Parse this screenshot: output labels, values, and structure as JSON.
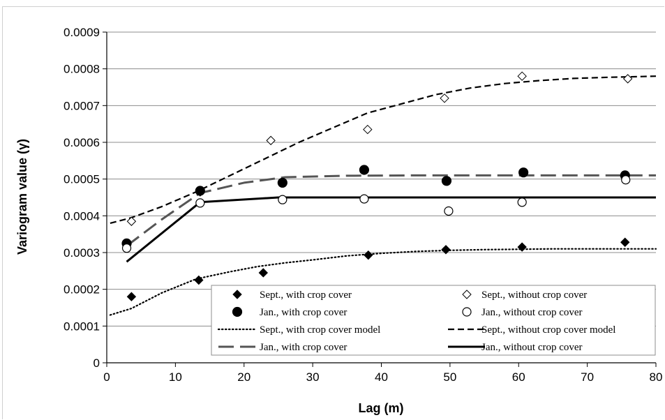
{
  "chart_data": {
    "type": "scatter",
    "title": "",
    "xlabel": "Lag (m)",
    "ylabel": "Variogram value (γ)",
    "xlim": [
      0,
      80
    ],
    "ylim": [
      0,
      0.0009
    ],
    "x_ticks": [
      "0",
      "10",
      "20",
      "30",
      "40",
      "50",
      "60",
      "70",
      "80"
    ],
    "y_ticks": [
      "0",
      "0.0001",
      "0.0002",
      "0.0003",
      "0.0004",
      "0.0005",
      "0.0006",
      "0.0007",
      "0.0008",
      "0.0009"
    ],
    "grid": "horizontal",
    "legend_position": "bottom-right",
    "series": [
      {
        "name": "Sept., with crop cover",
        "kind": "points",
        "marker": "diamond-filled",
        "x": [
          3.6,
          13.4,
          22.8,
          38.1,
          49.4,
          60.5,
          75.5
        ],
        "y": [
          0.00018,
          0.000225,
          0.000245,
          0.000293,
          0.000308,
          0.000315,
          0.000328
        ]
      },
      {
        "name": "Sept., without crop cover",
        "kind": "points",
        "marker": "diamond-open",
        "x": [
          3.6,
          13.6,
          23.9,
          38.0,
          49.2,
          60.5,
          75.9
        ],
        "y": [
          0.000385,
          0.000465,
          0.000605,
          0.000635,
          0.00072,
          0.00078,
          0.000773
        ]
      },
      {
        "name": "Jan., with crop cover",
        "kind": "points",
        "marker": "circle-filled",
        "x": [
          2.9,
          13.6,
          25.6,
          37.5,
          49.5,
          60.7,
          75.5
        ],
        "y": [
          0.000325,
          0.000468,
          0.00049,
          0.000525,
          0.000495,
          0.000518,
          0.00051
        ]
      },
      {
        "name": "Jan., without crop cover",
        "kind": "points",
        "marker": "circle-open",
        "x": [
          2.9,
          13.6,
          25.6,
          37.5,
          49.8,
          60.5,
          75.6
        ],
        "y": [
          0.000312,
          0.000435,
          0.000444,
          0.000446,
          0.000413,
          0.000437,
          0.000498
        ]
      },
      {
        "name": "Sept., with crop cover model",
        "kind": "line",
        "dash": "dotted",
        "x": [
          0.5,
          3.6,
          8,
          13,
          18,
          22,
          26,
          30,
          35,
          40,
          45,
          50,
          55,
          60,
          65,
          70,
          75,
          80
        ],
        "y": [
          0.00013,
          0.000148,
          0.00019,
          0.000228,
          0.000248,
          0.000262,
          0.000272,
          0.00028,
          0.000291,
          0.000298,
          0.000303,
          0.000306,
          0.000308,
          0.000309,
          0.00031,
          0.00031,
          0.00031,
          0.00031
        ]
      },
      {
        "name": "Sept., without crop cover model",
        "kind": "line",
        "dash": "dashed",
        "x": [
          0.5,
          3.6,
          8,
          13,
          18,
          23,
          28,
          33,
          38,
          43,
          48,
          53,
          58,
          63,
          68,
          73,
          78,
          80
        ],
        "y": [
          0.00038,
          0.000395,
          0.000425,
          0.000465,
          0.00051,
          0.000555,
          0.0006,
          0.00064,
          0.00068,
          0.000705,
          0.00073,
          0.000748,
          0.00076,
          0.000768,
          0.000774,
          0.000777,
          0.000779,
          0.00078
        ]
      },
      {
        "name": "Jan., with crop cover",
        "kind": "line",
        "dash": "longdash",
        "x": [
          2.9,
          8,
          13.6,
          20,
          26,
          35,
          45,
          60,
          80
        ],
        "y": [
          0.000318,
          0.00039,
          0.000462,
          0.00049,
          0.000505,
          0.000509,
          0.00051,
          0.00051,
          0.00051
        ]
      },
      {
        "name": "Jan., without crop cover",
        "kind": "line",
        "dash": "solid",
        "x": [
          2.9,
          13.6,
          25,
          40,
          60,
          80
        ],
        "y": [
          0.000275,
          0.000437,
          0.00045,
          0.00045,
          0.00045,
          0.00045
        ]
      }
    ]
  }
}
